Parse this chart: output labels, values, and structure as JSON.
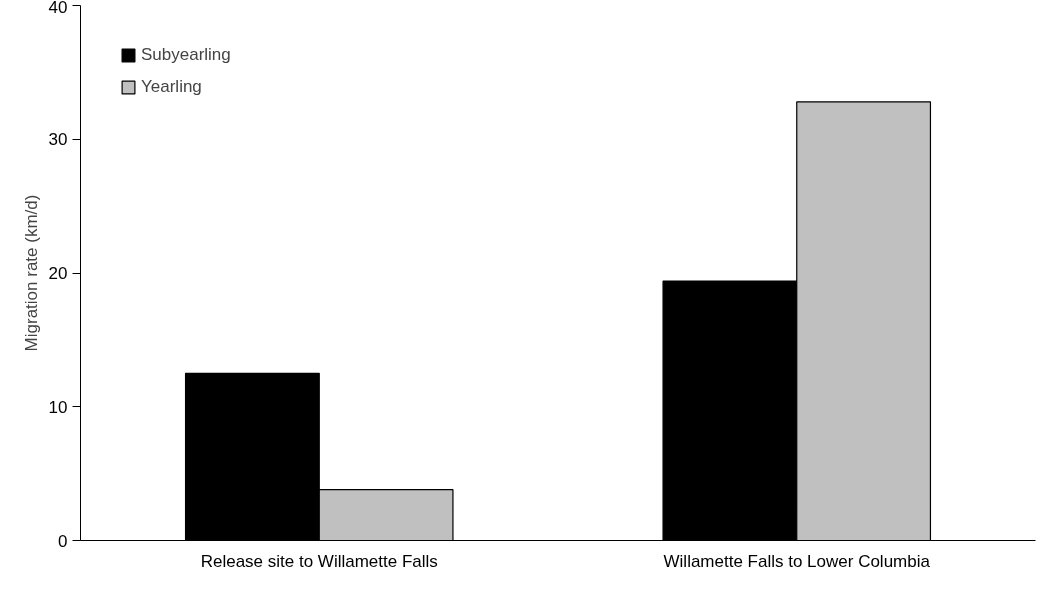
{
  "chart_data": {
    "type": "bar",
    "ylabel": "Migration rate (km/d)",
    "categories": [
      "Release site to Willamette Falls",
      "Willamette Falls to Lower Columbia"
    ],
    "series": [
      {
        "name": "Subyearling",
        "color": "#000000",
        "values": [
          12.5,
          19.4
        ]
      },
      {
        "name": "Yearling",
        "color": "#c0c0c0",
        "values": [
          3.8,
          32.8
        ]
      }
    ],
    "ylim": [
      0,
      40
    ],
    "yticks": [
      0,
      10,
      20,
      30,
      40
    ],
    "grid": false,
    "legend": "top left"
  }
}
